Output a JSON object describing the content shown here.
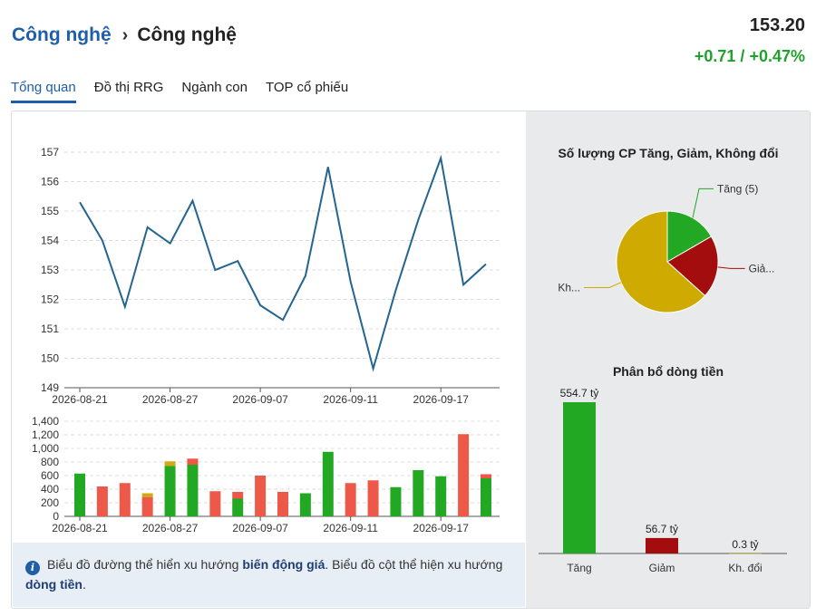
{
  "header": {
    "breadcrumb_parent": "Công nghệ",
    "breadcrumb_separator": "›",
    "breadcrumb_current": "Công nghệ",
    "price": "153.20",
    "change": "+0.71 / +0.47%"
  },
  "tabs": [
    {
      "label": "Tổng quan",
      "active": true
    },
    {
      "label": "Đồ thị RRG",
      "active": false
    },
    {
      "label": "Ngành con",
      "active": false
    },
    {
      "label": "TOP cổ phiếu",
      "active": false
    }
  ],
  "colors": {
    "line": "#23658f",
    "up": "#22a822",
    "down": "#ee5848",
    "unchanged": "#d4a917",
    "pie_up": "#22a822",
    "pie_down": "#a30d0d",
    "pie_unchanged": "#cfaa00",
    "accent": "#1f5ea8"
  },
  "chart_data": [
    {
      "type": "line",
      "x_tick_labels": [
        "2026-08-21",
        "2026-08-27",
        "2026-09-07",
        "2026-09-11",
        "2026-09-17"
      ],
      "x_tick_index": [
        0,
        4,
        8,
        12,
        16
      ],
      "values": [
        155.3,
        154.0,
        151.75,
        154.45,
        153.9,
        155.35,
        153.0,
        153.3,
        151.8,
        151.3,
        152.8,
        156.5,
        152.6,
        149.65,
        152.3,
        154.7,
        156.8,
        152.5,
        153.2
      ],
      "ylim": [
        149,
        157
      ],
      "yticks": [
        149,
        150,
        151,
        152,
        153,
        154,
        155,
        156,
        157
      ],
      "grid": true
    },
    {
      "type": "bar",
      "stacked": true,
      "x_tick_labels": [
        "2026-08-21",
        "2026-08-27",
        "2026-09-07",
        "2026-09-11",
        "2026-09-17"
      ],
      "x_tick_index": [
        0,
        4,
        8,
        12,
        16
      ],
      "series": [
        {
          "key": "up",
          "values": [
            630,
            0,
            0,
            0,
            740,
            760,
            0,
            260,
            0,
            0,
            340,
            950,
            0,
            0,
            430,
            680,
            590,
            0,
            560
          ]
        },
        {
          "key": "down",
          "values": [
            0,
            440,
            490,
            280,
            0,
            90,
            370,
            100,
            600,
            360,
            0,
            0,
            490,
            530,
            0,
            0,
            0,
            1210,
            60
          ]
        },
        {
          "key": "unchanged",
          "values": [
            0,
            0,
            0,
            60,
            70,
            0,
            0,
            0,
            0,
            0,
            0,
            0,
            0,
            0,
            0,
            0,
            0,
            0,
            0
          ]
        }
      ],
      "ylim": [
        0,
        1400
      ],
      "ytick_labels": [
        "0",
        "200",
        "400",
        "600",
        "800",
        "1,000",
        "1,200",
        "1,400"
      ],
      "yticks": [
        0,
        200,
        400,
        600,
        800,
        1000,
        1200,
        1400
      ],
      "grid": true
    },
    {
      "type": "pie",
      "title": "Số lượng CP Tăng, Giảm, Không đổi",
      "slices": [
        {
          "key": "up",
          "label": "Tăng (5)",
          "value": 5
        },
        {
          "key": "down",
          "label": "Giả...",
          "value": 6
        },
        {
          "key": "unchanged",
          "label": "Kh...",
          "value": 19
        }
      ]
    },
    {
      "type": "bar",
      "title": "Phân bổ dòng tiền",
      "categories": [
        "Tăng",
        "Giảm",
        "Kh. đổi"
      ],
      "values": [
        554.7,
        56.7,
        0.3
      ],
      "value_labels": [
        "554.7 tỷ",
        "56.7 tỷ",
        "0.3 tỷ"
      ],
      "colors": [
        "#22a822",
        "#a30d0d",
        "#cfaa00"
      ]
    }
  ],
  "info": {
    "text_1": "Biểu đồ đường thể hiển xu hướng ",
    "bold_1": "biến động giá",
    "text_2": ". Biểu đồ cột thể hiện xu hướng ",
    "bold_2": "dòng tiền",
    "text_3": "."
  }
}
